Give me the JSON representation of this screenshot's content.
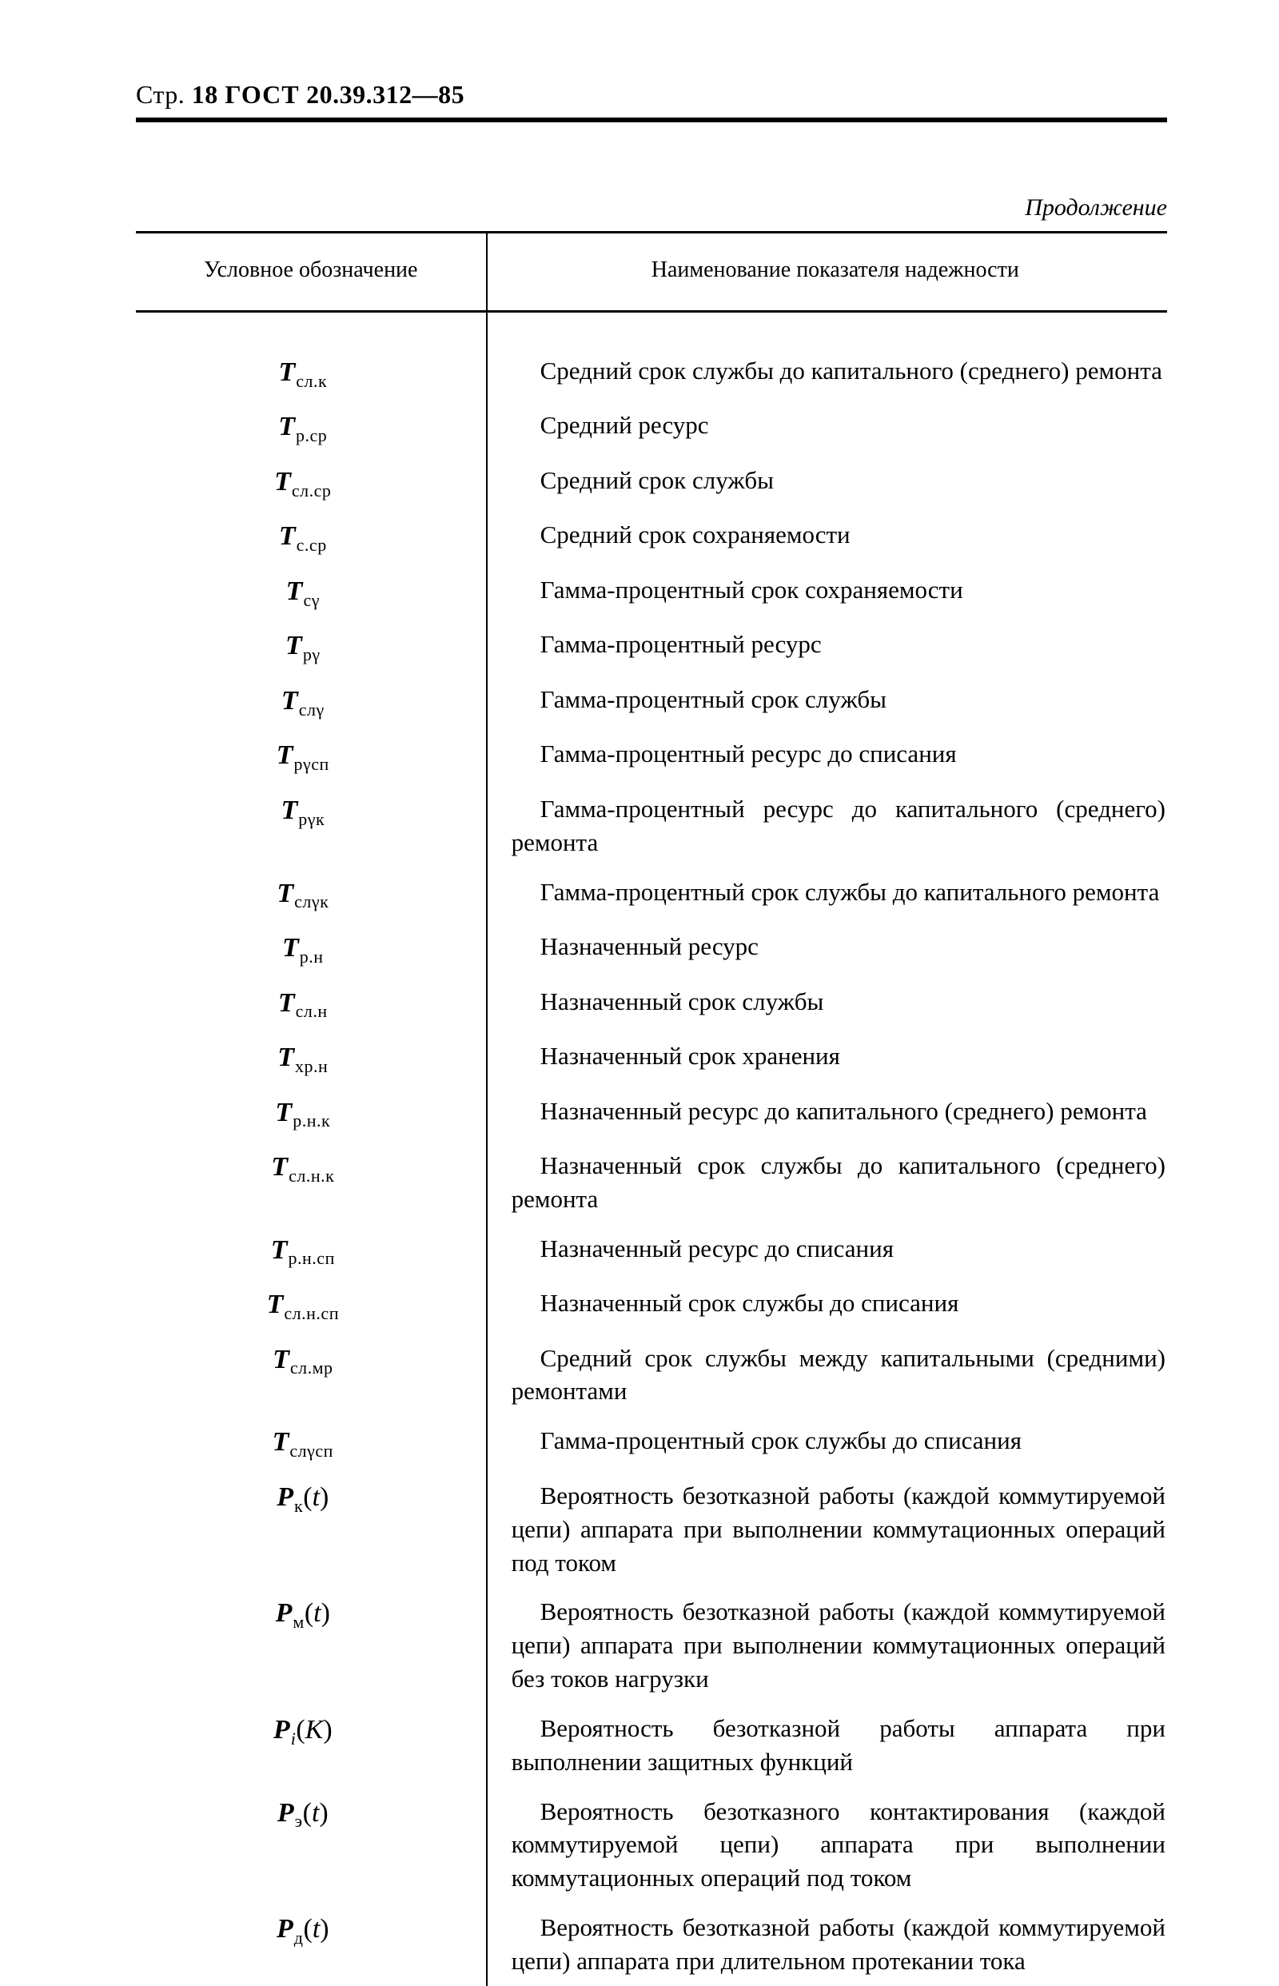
{
  "pageHeader": {
    "str_label": "Стр.",
    "page_number": "18",
    "gost_word": "ГОСТ",
    "gost_number": "20.39.312—85"
  },
  "continuation": "Продолжение",
  "tableHeaders": {
    "col1": "Условное обозначение",
    "col2": "Наименование показателя надежности"
  },
  "rows": [
    {
      "sym_base": "T",
      "sym_sub": "сл.к",
      "desc": "Средний срок службы до капитального (сред­него) ремонта"
    },
    {
      "sym_base": "T",
      "sym_sub": "р.ср",
      "desc": "Средний ресурс",
      "single": true
    },
    {
      "sym_base": "T",
      "sym_sub": "сл.ср",
      "desc": "Средний срок службы",
      "single": true
    },
    {
      "sym_base": "T",
      "sym_sub": "с.ср",
      "desc": "Средний срок сохраняемости",
      "single": true
    },
    {
      "sym_base": "T",
      "sym_sub": "сγ",
      "desc": "Гамма-процентный срок сохраняемости",
      "single": true
    },
    {
      "sym_base": "T",
      "sym_sub": "рγ",
      "desc": "Гамма-процентный ресурс",
      "single": true
    },
    {
      "sym_base": "T",
      "sym_sub": "слγ",
      "desc": "Гамма-процентный срок службы",
      "single": true
    },
    {
      "sym_base": "T",
      "sym_sub": "рγсп",
      "desc": "Гамма-процентный ресурс до списания",
      "single": true
    },
    {
      "sym_base": "T",
      "sym_sub": "рγк",
      "desc": "Гамма-процентный ресурс до капитального (среднего) ремонта"
    },
    {
      "sym_base": "T",
      "sym_sub": "слγк",
      "desc": "Гамма-процентный срок службы до капиталь­ного ремонта"
    },
    {
      "sym_base": "T",
      "sym_sub": "р.н",
      "desc": "Назначенный ресурс",
      "single": true
    },
    {
      "sym_base": "T",
      "sym_sub": "сл.н",
      "desc": "Назначенный срок службы",
      "single": true
    },
    {
      "sym_base": "T",
      "sym_sub": "хр.н",
      "desc": "Назначенный срок хранения",
      "single": true
    },
    {
      "sym_base": "T",
      "sym_sub": "р.н.к",
      "desc": "Назначенный ресурс до капитального (средне­го) ремонта"
    },
    {
      "sym_base": "T",
      "sym_sub": "сл.н.к",
      "desc": "Назначенный срок службы до капитального (среднего) ремонта"
    },
    {
      "sym_base": "T",
      "sym_sub": "р.н.сп",
      "desc": "Назначенный ресурс до списания",
      "single": true
    },
    {
      "sym_base": "T",
      "sym_sub": "сл.н.сп",
      "desc": "Назначенный срок службы до списания",
      "single": true
    },
    {
      "sym_base": "T",
      "sym_sub": "сл.мр",
      "desc": "Средний срок службы между капитальными (средними) ремонтами"
    },
    {
      "sym_base": "T",
      "sym_sub": "слγсп",
      "desc": "Гамма-процентный срок службы до списания",
      "single": true
    },
    {
      "sym_base": "P",
      "sym_sub": "к",
      "sym_arg": "t",
      "desc": "Вероятность безотказной работы (каждой коммутируемой цепи) аппарата при выполнении коммутационных операций под током"
    },
    {
      "sym_base": "P",
      "sym_sub": "м",
      "sym_arg": "t",
      "desc": "Вероятность безотказной работы (каждой ком­мутируемой цепи) аппарата при выполнении коммутационных операций без токов нагрузки"
    },
    {
      "sym_base": "P",
      "sym_sub": "i",
      "sym_arg": "K",
      "sub_italic": true,
      "desc": "Вероятность безотказной работы аппарата при выполнении защитных функций"
    },
    {
      "sym_base": "P",
      "sym_sub": "э",
      "sym_arg": "t",
      "desc": "Вероятность безотказного контактирования (каждой коммутируемой цепи) аппарата при выполнении коммутационных операций под то­ком"
    },
    {
      "sym_base": "P",
      "sym_sub": "д",
      "sym_arg": "t",
      "desc": "Вероятность безотказной работы (каждой ком­мутируемой цепи) аппарата при длительном протекании тока"
    }
  ]
}
